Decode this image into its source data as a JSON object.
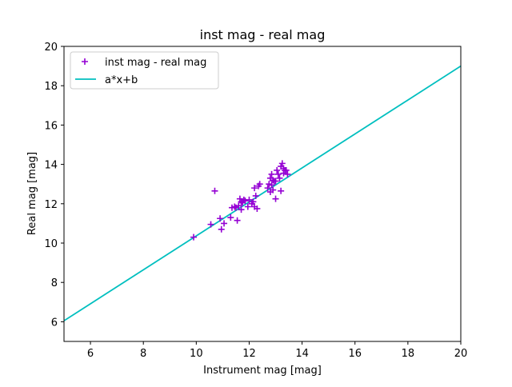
{
  "chart_data": {
    "type": "scatter",
    "title": "inst mag - real mag",
    "xlabel": "Instrument mag [mag]",
    "ylabel": "Real mag [mag]",
    "xlim": [
      5,
      20
    ],
    "ylim": [
      5,
      20
    ],
    "xticks": [
      6,
      8,
      10,
      12,
      14,
      16,
      18,
      20
    ],
    "yticks": [
      6,
      8,
      10,
      12,
      14,
      16,
      18,
      20
    ],
    "grid": false,
    "legend_position": "top-left",
    "series": [
      {
        "name": "inst mag - real mag",
        "kind": "scatter",
        "marker": "plus",
        "color": "#9400d3",
        "x": [
          9.9,
          10.55,
          10.7,
          10.9,
          10.95,
          11.05,
          11.3,
          11.35,
          11.45,
          11.5,
          11.55,
          11.6,
          11.65,
          11.7,
          11.7,
          11.75,
          11.8,
          11.85,
          11.95,
          12.0,
          12.1,
          12.15,
          12.2,
          12.2,
          12.25,
          12.3,
          12.35,
          12.4,
          12.7,
          12.75,
          12.8,
          12.8,
          12.85,
          12.85,
          12.9,
          12.9,
          12.95,
          13.0,
          13.0,
          13.05,
          13.1,
          13.15,
          13.2,
          13.2,
          13.25,
          13.3,
          13.3,
          13.35,
          13.4,
          13.45
        ],
        "y": [
          10.3,
          10.95,
          12.65,
          11.25,
          10.7,
          11.0,
          11.3,
          11.8,
          11.85,
          11.8,
          11.15,
          11.9,
          12.25,
          12.1,
          11.7,
          12.05,
          12.2,
          12.15,
          11.85,
          12.2,
          12.0,
          12.1,
          11.85,
          12.8,
          12.4,
          11.75,
          12.9,
          13.0,
          12.8,
          13.0,
          13.3,
          12.6,
          13.5,
          12.95,
          13.2,
          12.7,
          13.15,
          12.25,
          13.15,
          13.7,
          13.5,
          13.3,
          13.9,
          12.65,
          14.05,
          13.8,
          13.55,
          13.7,
          13.7,
          13.5
        ]
      },
      {
        "name": "a*x+b",
        "kind": "line",
        "color": "#00bfbf",
        "x": [
          5,
          20
        ],
        "y": [
          6.05,
          19.0
        ]
      }
    ]
  }
}
